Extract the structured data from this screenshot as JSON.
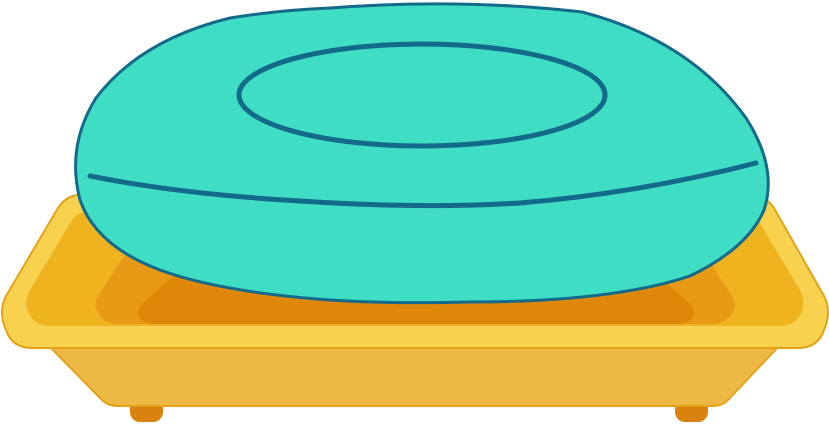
{
  "illustration": {
    "subject": "soap-bar-on-soap-dish",
    "colors": {
      "soap_fill": "#3FDDC4",
      "soap_outline": "#146A8A",
      "dish_rim": "#F8D24E",
      "dish_rim_stroke": "#E3A21A",
      "dish_inner": "#F0B320",
      "dish_well_mid": "#E89A16",
      "dish_well_deep": "#DF8708",
      "dish_base": "#EDB843",
      "feet": "#D9820E"
    }
  }
}
